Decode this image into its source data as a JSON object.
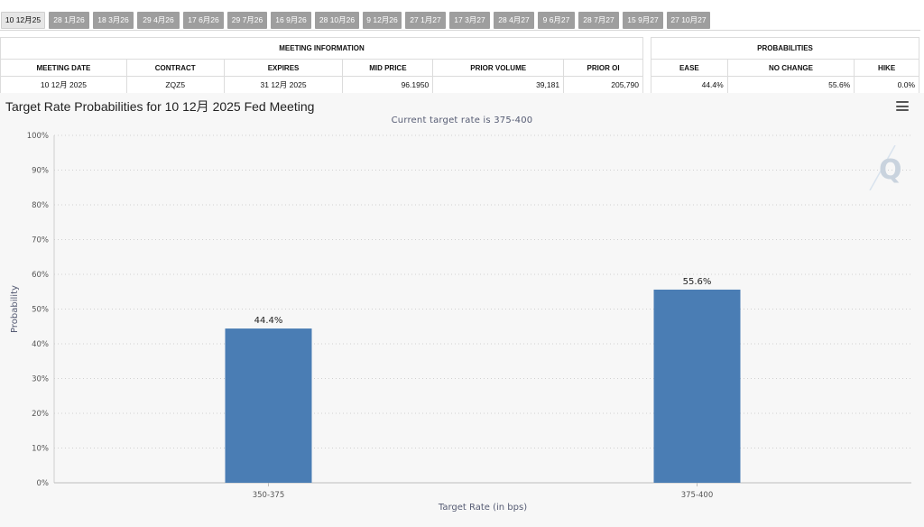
{
  "tabs": [
    "10 12月25",
    "28 1月26",
    "18 3月26",
    "29 4月26",
    "17 6月26",
    "29 7月26",
    "16 9月26",
    "28 10月26",
    "9 12月26",
    "27 1月27",
    "17 3月27",
    "28 4月27",
    "9 6月27",
    "28 7月27",
    "15 9月27",
    "27 10月27"
  ],
  "meeting_info": {
    "group_title": "MEETING INFORMATION",
    "headers": [
      "MEETING DATE",
      "CONTRACT",
      "EXPIRES",
      "MID PRICE",
      "PRIOR VOLUME",
      "PRIOR OI"
    ],
    "row": [
      "10 12月 2025",
      "ZQZ5",
      "31 12月 2025",
      "96.1950",
      "39,181",
      "205,790"
    ]
  },
  "probabilities": {
    "group_title": "PROBABILITIES",
    "headers": [
      "EASE",
      "NO CHANGE",
      "HIKE"
    ],
    "row": [
      "44.4%",
      "55.6%",
      "0.0%"
    ]
  },
  "chart": {
    "title": "Target Rate Probabilities for 10 12月 2025 Fed Meeting",
    "subtitle": "Current target rate is 375-400",
    "bar_color": "#4a7db4"
  },
  "chart_data": {
    "type": "bar",
    "title": "Target Rate Probabilities for 10 12月 2025 Fed Meeting",
    "subtitle": "Current target rate is 375-400",
    "categories": [
      "350-375",
      "375-400"
    ],
    "values": [
      44.4,
      55.6
    ],
    "data_labels": [
      "44.4%",
      "55.6%"
    ],
    "xlabel": "Target Rate (in bps)",
    "ylabel": "Probability",
    "ylim": [
      0,
      100
    ],
    "yticks": [
      "0%",
      "10%",
      "20%",
      "30%",
      "40%",
      "50%",
      "60%",
      "70%",
      "80%",
      "90%",
      "100%"
    ],
    "grid": true,
    "legend": "none"
  }
}
